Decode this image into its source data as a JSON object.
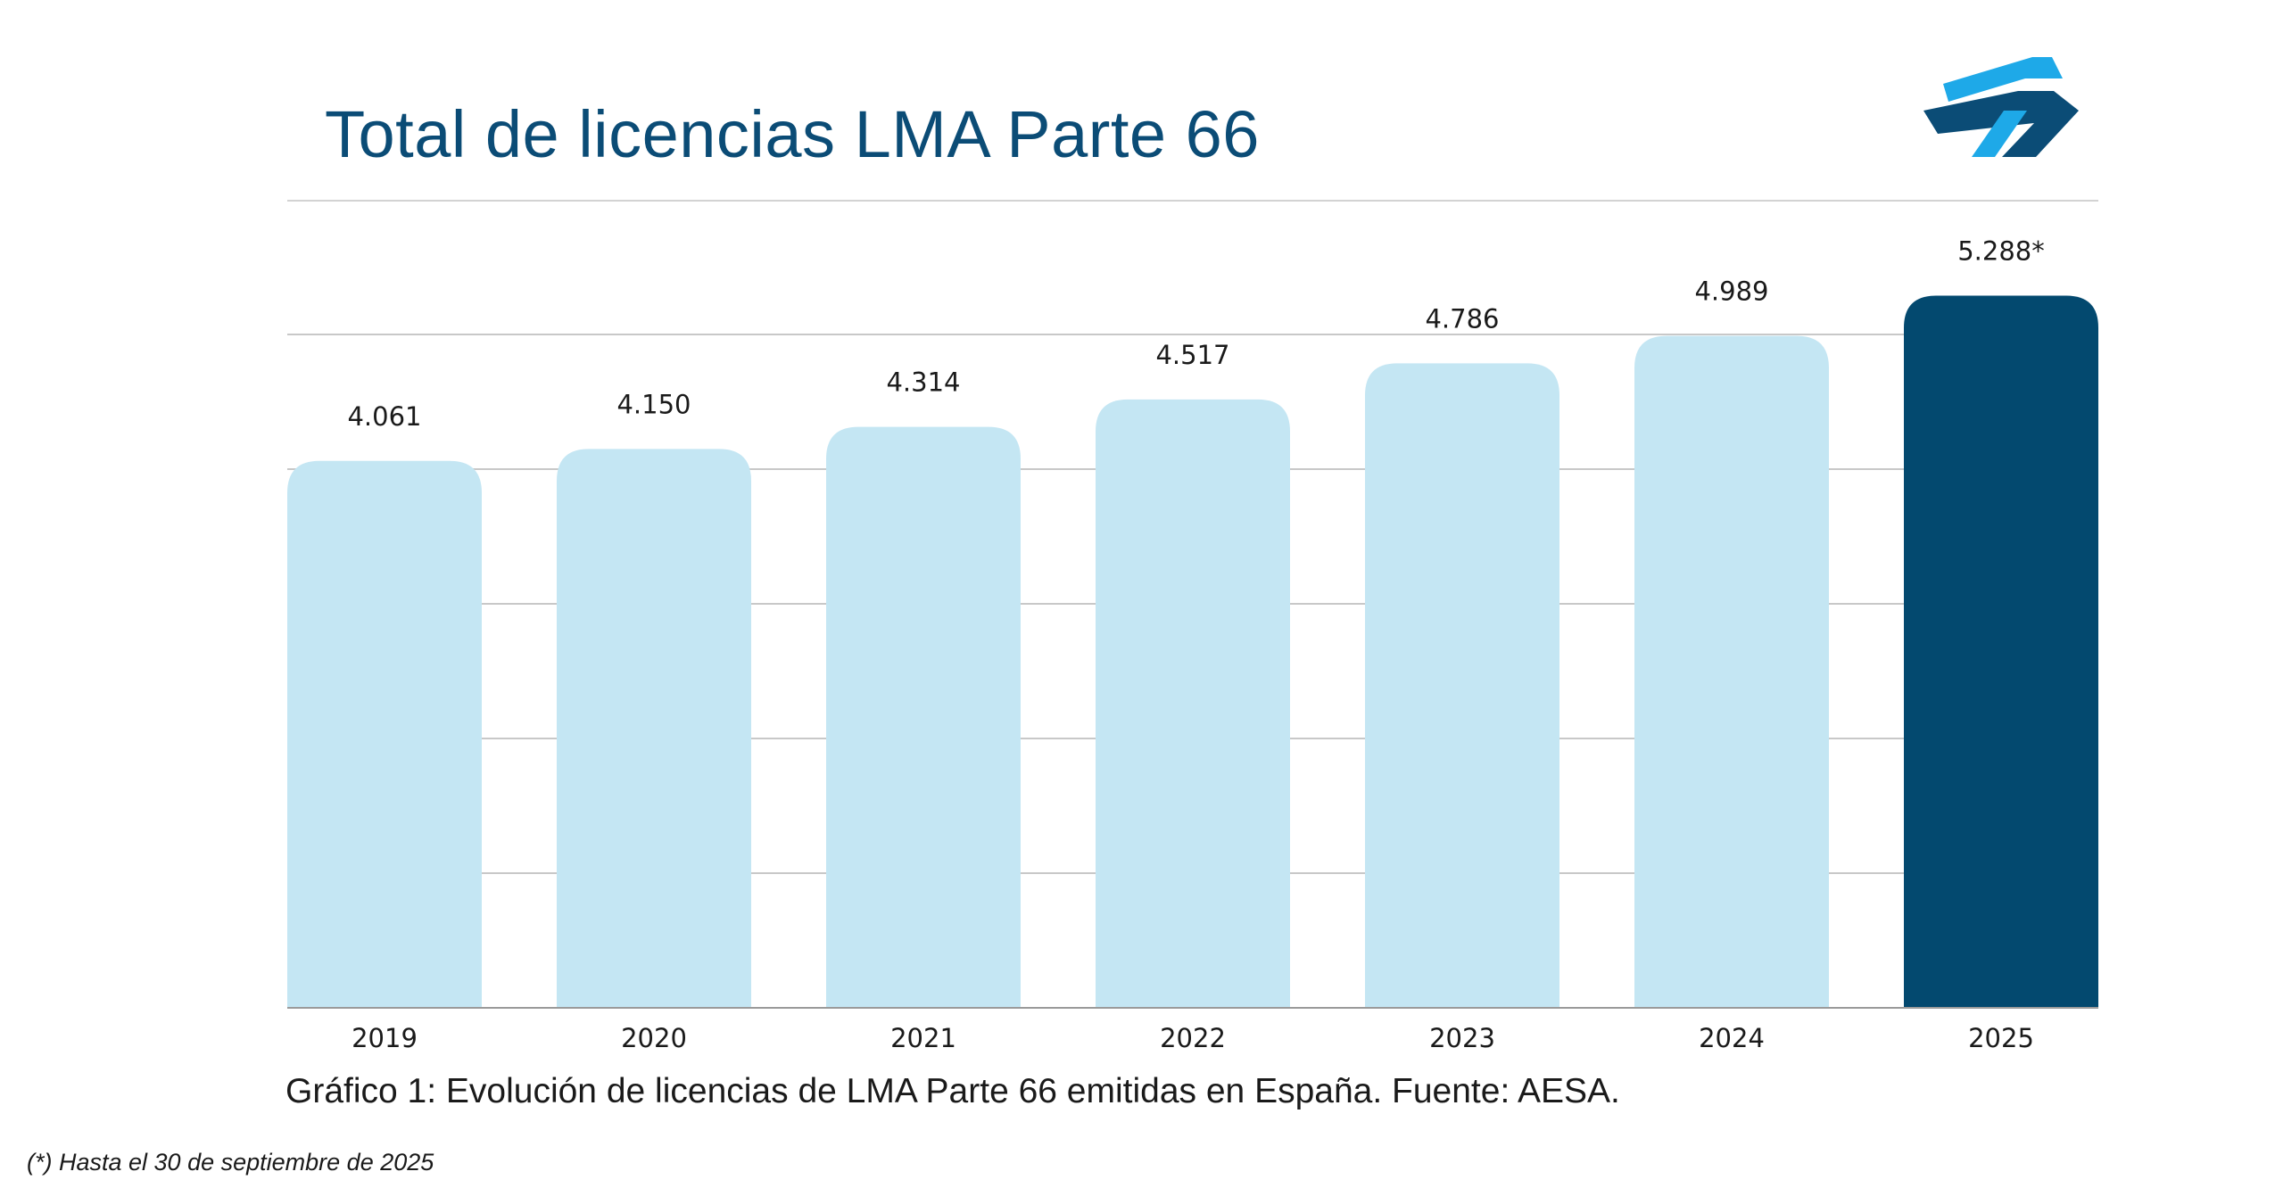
{
  "header": {
    "title": "Total de licencias LMA Parte 66"
  },
  "logo": {
    "icon": "brand-arrows-logo",
    "colors": [
      "#1ea9e8",
      "#0b4c76"
    ]
  },
  "chart_data": {
    "type": "bar",
    "categories": [
      "2019",
      "2020",
      "2021",
      "2022",
      "2023",
      "2024",
      "2025"
    ],
    "values": [
      4061,
      4150,
      4314,
      4517,
      4786,
      4989,
      5288
    ],
    "data_labels": [
      "4.061",
      "4.150",
      "4.314",
      "4.517",
      "4.786",
      "4.989",
      "5.288*"
    ],
    "title": "Total de licencias LMA Parte 66",
    "xlabel": "",
    "ylabel": "",
    "ylim": [
      0,
      5000
    ],
    "grid": true,
    "colors": {
      "default": "#c4e6f3",
      "highlight": "#03496f",
      "highlight_category": "2025",
      "grid": "#c8c8c8",
      "axis": "#9a9a9a"
    }
  },
  "caption": "Gráfico 1: Evolución de licencias de LMA Parte 66 emitidas en España. Fuente: AESA.",
  "footnote": "(*) Hasta el 30 de septiembre de 2025"
}
